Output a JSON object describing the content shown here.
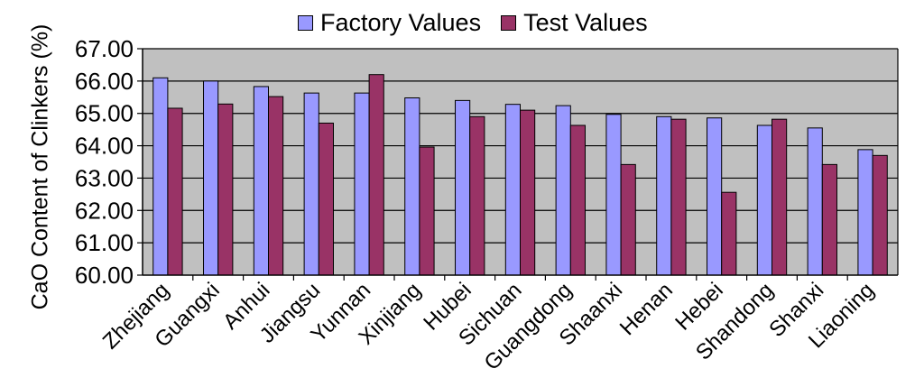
{
  "chart_data": {
    "type": "bar",
    "title": "",
    "xlabel": "",
    "ylabel": "CaO Content of Clinkers (%)",
    "ylim": [
      60,
      67
    ],
    "yticks": [
      "60.00",
      "61.00",
      "62.00",
      "63.00",
      "64.00",
      "65.00",
      "66.00",
      "67.00"
    ],
    "grid": true,
    "legend_position": "top",
    "categories": [
      "Zhejiang",
      "Guangxi",
      "Anhui",
      "Jiangsu",
      "Yunnan",
      "Xinjiang",
      "Hubei",
      "Sichuan",
      "Guangdong",
      "Shaanxi",
      "Henan",
      "Hebei",
      "Shandong",
      "Shanxi",
      "Liaoning"
    ],
    "series": [
      {
        "name": "Factory Values",
        "color": "#9999ff",
        "values": [
          66.1,
          66.0,
          65.83,
          65.63,
          65.63,
          65.48,
          65.4,
          65.28,
          65.24,
          64.97,
          64.9,
          64.86,
          64.63,
          64.55,
          63.88
        ]
      },
      {
        "name": "Test Values",
        "color": "#993366",
        "values": [
          65.16,
          65.29,
          65.52,
          64.7,
          66.2,
          63.96,
          64.9,
          65.1,
          64.63,
          63.42,
          64.82,
          62.56,
          64.82,
          63.42,
          63.7
        ]
      }
    ]
  }
}
